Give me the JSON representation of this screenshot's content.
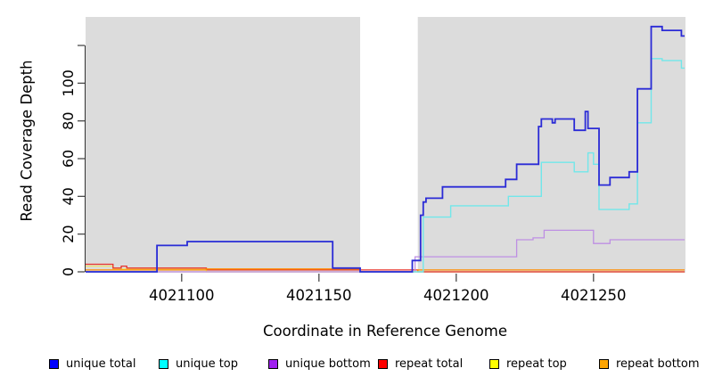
{
  "chart_data": {
    "type": "line",
    "step": true,
    "title": "",
    "xlabel": "Coordinate in Reference Genome",
    "ylabel": "Read Coverage Depth",
    "xlim": [
      4021065,
      4021284
    ],
    "ylim": [
      0,
      135
    ],
    "grid": false,
    "legend_position": "bottom",
    "x_ticks": [
      {
        "value": 4021100,
        "label": "4021100"
      },
      {
        "value": 4021150,
        "label": "4021150"
      },
      {
        "value": 4021200,
        "label": "4021200"
      },
      {
        "value": 4021250,
        "label": "4021250"
      }
    ],
    "y_ticks": [
      {
        "value": 0,
        "label": "0"
      },
      {
        "value": 20,
        "label": "20"
      },
      {
        "value": 40,
        "label": "40"
      },
      {
        "value": 60,
        "label": "60"
      },
      {
        "value": 80,
        "label": "80"
      },
      {
        "value": 100,
        "label": "100"
      },
      {
        "value": 120,
        "label": ""
      }
    ],
    "background": {
      "plot_color": "#DCDCDC",
      "data_regions": [
        [
          4021065,
          4021165
        ],
        [
          4021186,
          4021284
        ]
      ],
      "gap_region": [
        4021165,
        4021186
      ]
    },
    "draw_order": [
      4,
      3,
      5,
      2,
      1,
      0
    ],
    "series": [
      {
        "name": "unique total",
        "legend_color": "#0000FF",
        "line_color": "#2B2BD6",
        "line_width": 1.8,
        "points": [
          [
            4021065,
            0
          ],
          [
            4021091,
            14
          ],
          [
            4021102,
            16
          ],
          [
            4021155,
            2
          ],
          [
            4021165,
            0
          ],
          [
            4021184,
            6
          ],
          [
            4021187,
            30
          ],
          [
            4021188,
            37
          ],
          [
            4021189,
            39
          ],
          [
            4021195,
            45
          ],
          [
            4021218,
            49
          ],
          [
            4021222,
            57
          ],
          [
            4021230,
            77
          ],
          [
            4021231,
            81
          ],
          [
            4021235,
            79
          ],
          [
            4021236,
            81
          ],
          [
            4021243,
            75
          ],
          [
            4021247,
            85
          ],
          [
            4021248,
            76
          ],
          [
            4021252,
            46
          ],
          [
            4021256,
            50
          ],
          [
            4021263,
            53
          ],
          [
            4021266,
            97
          ],
          [
            4021271,
            130
          ],
          [
            4021275,
            128
          ],
          [
            4021282,
            125
          ]
        ]
      },
      {
        "name": "unique top",
        "legend_color": "#00FFFF",
        "line_color": "#71E7EA",
        "line_width": 1.4,
        "points": [
          [
            4021065,
            0
          ],
          [
            4021091,
            14
          ],
          [
            4021102,
            16
          ],
          [
            4021155,
            2
          ],
          [
            4021165,
            0
          ],
          [
            4021188,
            29
          ],
          [
            4021198,
            35
          ],
          [
            4021219,
            40
          ],
          [
            4021231,
            58
          ],
          [
            4021243,
            53
          ],
          [
            4021248,
            63
          ],
          [
            4021250,
            57
          ],
          [
            4021252,
            33
          ],
          [
            4021263,
            36
          ],
          [
            4021266,
            79
          ],
          [
            4021271,
            113
          ],
          [
            4021275,
            112
          ],
          [
            4021282,
            108
          ]
        ]
      },
      {
        "name": "unique bottom",
        "legend_color": "#A020F0",
        "line_color": "#BE8FE3",
        "line_width": 1.3,
        "points": [
          [
            4021065,
            0
          ],
          [
            4021185,
            8
          ],
          [
            4021222,
            17
          ],
          [
            4021228,
            18
          ],
          [
            4021232,
            22
          ],
          [
            4021250,
            15
          ],
          [
            4021256,
            17
          ]
        ]
      },
      {
        "name": "repeat total",
        "legend_color": "#FF0000",
        "line_color": "#E8332A",
        "line_width": 1.3,
        "points": [
          [
            4021065,
            4
          ],
          [
            4021075,
            2
          ],
          [
            4021078,
            3
          ],
          [
            4021080,
            2
          ],
          [
            4021109,
            1
          ],
          [
            4021186,
            0
          ]
        ]
      },
      {
        "name": "repeat top",
        "legend_color": "#FFFF00",
        "line_color": "#EFE26B",
        "line_width": 1.3,
        "points": [
          [
            4021065,
            3
          ],
          [
            4021075,
            1.5
          ],
          [
            4021109,
            0
          ]
        ]
      },
      {
        "name": "repeat bottom",
        "legend_color": "#FFA500",
        "line_color": "#FF8C00",
        "line_width": 1.3,
        "points": [
          [
            4021065,
            1
          ],
          [
            4021109,
            1.5
          ],
          [
            4021165,
            0
          ],
          [
            4021186,
            1
          ]
        ]
      }
    ]
  }
}
